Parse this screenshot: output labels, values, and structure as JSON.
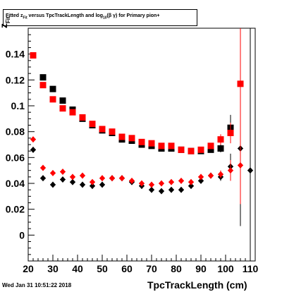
{
  "title_parts": {
    "pre": "Fitted  z",
    "sub1": "Fit",
    "mid": "  versus TpcTrackLength and log",
    "sub2": "10",
    "post": "(β γ) for Primary pion+"
  },
  "timestamp": "Wed Jan 31 10:51:22 2018",
  "colors": {
    "black": "#000000",
    "red": "#ff0000"
  },
  "chart_data": {
    "type": "scatter",
    "title": "Fitted  zFit  versus TpcTrackLength and log10(β γ) for Primary pion+",
    "xlabel": "TpcTrackLength (cm)",
    "ylabel": "z",
    "ylabel_sub": "Fit",
    "xlim": [
      20,
      112
    ],
    "ylim": [
      -0.02,
      0.16
    ],
    "xticks": [
      20,
      30,
      40,
      50,
      60,
      70,
      80,
      90,
      100,
      110
    ],
    "yticks": [
      0,
      0.02,
      0.04,
      0.06,
      0.08,
      0.1,
      0.12,
      0.14
    ],
    "ytick_labels": [
      "0",
      "0.02",
      "0.04",
      "0.06",
      "0.08",
      "0.1",
      "0.12",
      "0.14"
    ],
    "grid": false,
    "series": [
      {
        "color": "#000000",
        "marker": "square",
        "points": [
          {
            "x": 22,
            "y": 0.139,
            "err": 0.0015
          },
          {
            "x": 26,
            "y": 0.122,
            "err": 0.0015
          },
          {
            "x": 30,
            "y": 0.113,
            "err": 0.0015
          },
          {
            "x": 34,
            "y": 0.104,
            "err": 0.0015
          },
          {
            "x": 38,
            "y": 0.097,
            "err": 0.0015
          },
          {
            "x": 42,
            "y": 0.09,
            "err": 0.0015
          },
          {
            "x": 46,
            "y": 0.085,
            "err": 0.0015
          },
          {
            "x": 50,
            "y": 0.081,
            "err": 0.0015
          },
          {
            "x": 54,
            "y": 0.079,
            "err": 0.0015
          },
          {
            "x": 58,
            "y": 0.074,
            "err": 0.0015
          },
          {
            "x": 62,
            "y": 0.073,
            "err": 0.0015
          },
          {
            "x": 66,
            "y": 0.07,
            "err": 0.0015
          },
          {
            "x": 70,
            "y": 0.069,
            "err": 0.0015
          },
          {
            "x": 74,
            "y": 0.067,
            "err": 0.0015
          },
          {
            "x": 78,
            "y": 0.067,
            "err": 0.0015
          },
          {
            "x": 82,
            "y": 0.066,
            "err": 0.0015
          },
          {
            "x": 86,
            "y": 0.065,
            "err": 0.0015
          },
          {
            "x": 90,
            "y": 0.065,
            "err": 0.0015
          },
          {
            "x": 94,
            "y": 0.066,
            "err": 0.002
          },
          {
            "x": 98,
            "y": 0.067,
            "err": 0.003
          },
          {
            "x": 102,
            "y": 0.083,
            "err": 0.01
          }
        ]
      },
      {
        "color": "#000000",
        "marker": "diamond",
        "points": [
          {
            "x": 22,
            "y": 0.066,
            "err": 0.0015
          },
          {
            "x": 26,
            "y": 0.044,
            "err": 0.0015
          },
          {
            "x": 30,
            "y": 0.039,
            "err": 0.0015
          },
          {
            "x": 34,
            "y": 0.043,
            "err": 0.0015
          },
          {
            "x": 38,
            "y": 0.041,
            "err": 0.0015
          },
          {
            "x": 42,
            "y": 0.039,
            "err": 0.0015
          },
          {
            "x": 46,
            "y": 0.038,
            "err": 0.0015
          },
          {
            "x": 50,
            "y": 0.039,
            "err": 0.0015
          },
          {
            "x": 54,
            "y": 0.044,
            "err": 0.0015
          },
          {
            "x": 58,
            "y": 0.044,
            "err": 0.0015
          },
          {
            "x": 62,
            "y": 0.041,
            "err": 0.0015
          },
          {
            "x": 66,
            "y": 0.038,
            "err": 0.0015
          },
          {
            "x": 70,
            "y": 0.035,
            "err": 0.0015
          },
          {
            "x": 74,
            "y": 0.034,
            "err": 0.0015
          },
          {
            "x": 78,
            "y": 0.035,
            "err": 0.0015
          },
          {
            "x": 82,
            "y": 0.035,
            "err": 0.0015
          },
          {
            "x": 86,
            "y": 0.038,
            "err": 0.0015
          },
          {
            "x": 90,
            "y": 0.042,
            "err": 0.0015
          },
          {
            "x": 94,
            "y": 0.046,
            "err": 0.002
          },
          {
            "x": 98,
            "y": 0.045,
            "err": 0.003
          },
          {
            "x": 102,
            "y": 0.053,
            "err": 0.01
          },
          {
            "x": 106,
            "y": 0.067,
            "err": 0.06
          },
          {
            "x": 110,
            "y": 0.05,
            "err": 0.2
          }
        ]
      },
      {
        "color": "#ff0000",
        "marker": "square",
        "points": [
          {
            "x": 22,
            "y": 0.139,
            "err": 0.0015
          },
          {
            "x": 26,
            "y": 0.116,
            "err": 0.0015
          },
          {
            "x": 30,
            "y": 0.105,
            "err": 0.0015
          },
          {
            "x": 34,
            "y": 0.098,
            "err": 0.0015
          },
          {
            "x": 38,
            "y": 0.095,
            "err": 0.0015
          },
          {
            "x": 42,
            "y": 0.091,
            "err": 0.0015
          },
          {
            "x": 46,
            "y": 0.086,
            "err": 0.0015
          },
          {
            "x": 50,
            "y": 0.082,
            "err": 0.0015
          },
          {
            "x": 54,
            "y": 0.08,
            "err": 0.0015
          },
          {
            "x": 58,
            "y": 0.076,
            "err": 0.0015
          },
          {
            "x": 62,
            "y": 0.075,
            "err": 0.0015
          },
          {
            "x": 66,
            "y": 0.072,
            "err": 0.0015
          },
          {
            "x": 70,
            "y": 0.071,
            "err": 0.0015
          },
          {
            "x": 74,
            "y": 0.069,
            "err": 0.0015
          },
          {
            "x": 78,
            "y": 0.069,
            "err": 0.0015
          },
          {
            "x": 82,
            "y": 0.066,
            "err": 0.0015
          },
          {
            "x": 86,
            "y": 0.065,
            "err": 0.0015
          },
          {
            "x": 90,
            "y": 0.066,
            "err": 0.0015
          },
          {
            "x": 94,
            "y": 0.069,
            "err": 0.002
          },
          {
            "x": 98,
            "y": 0.074,
            "err": 0.004
          },
          {
            "x": 102,
            "y": 0.079,
            "err": 0.008
          },
          {
            "x": 106,
            "y": 0.117,
            "err": 0.08
          }
        ]
      },
      {
        "color": "#ff0000",
        "marker": "diamond",
        "points": [
          {
            "x": 22,
            "y": 0.074,
            "err": 0.0015
          },
          {
            "x": 26,
            "y": 0.052,
            "err": 0.0015
          },
          {
            "x": 30,
            "y": 0.048,
            "err": 0.0015
          },
          {
            "x": 34,
            "y": 0.049,
            "err": 0.0015
          },
          {
            "x": 38,
            "y": 0.045,
            "err": 0.0015
          },
          {
            "x": 42,
            "y": 0.046,
            "err": 0.0015
          },
          {
            "x": 46,
            "y": 0.041,
            "err": 0.0015
          },
          {
            "x": 50,
            "y": 0.044,
            "err": 0.0015
          },
          {
            "x": 54,
            "y": 0.044,
            "err": 0.0015
          },
          {
            "x": 58,
            "y": 0.044,
            "err": 0.0015
          },
          {
            "x": 62,
            "y": 0.042,
            "err": 0.0015
          },
          {
            "x": 66,
            "y": 0.04,
            "err": 0.0015
          },
          {
            "x": 70,
            "y": 0.039,
            "err": 0.0015
          },
          {
            "x": 74,
            "y": 0.04,
            "err": 0.0015
          },
          {
            "x": 78,
            "y": 0.041,
            "err": 0.0015
          },
          {
            "x": 82,
            "y": 0.042,
            "err": 0.0015
          },
          {
            "x": 86,
            "y": 0.041,
            "err": 0.0015
          },
          {
            "x": 90,
            "y": 0.045,
            "err": 0.0015
          },
          {
            "x": 94,
            "y": 0.046,
            "err": 0.002
          },
          {
            "x": 98,
            "y": 0.047,
            "err": 0.003
          },
          {
            "x": 102,
            "y": 0.05,
            "err": 0.008
          },
          {
            "x": 106,
            "y": 0.054,
            "err": 0.03
          }
        ]
      }
    ]
  }
}
